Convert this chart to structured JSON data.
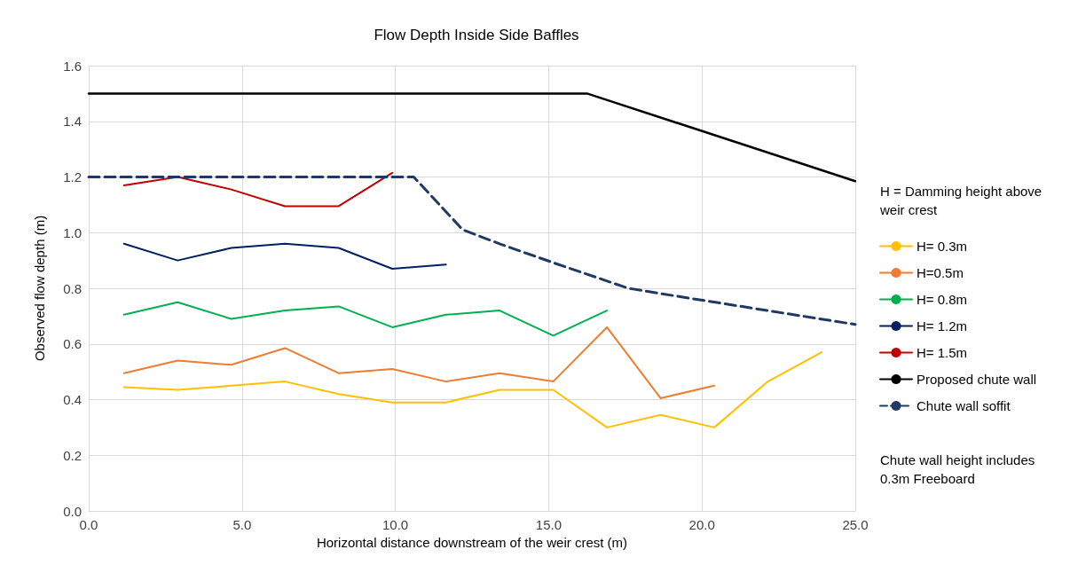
{
  "chart_data": {
    "type": "line",
    "title": "Flow Depth Inside Side Baffles",
    "xlabel": "Horizontal distance downstream of the weir crest (m)",
    "ylabel": "Observed flow depth (m)",
    "legend_title": "H = Damming height above weir crest",
    "annotations": [
      "Chute wall height includes 0.3m Freeboard"
    ],
    "x": [
      1.15,
      2.9,
      4.65,
      6.4,
      8.15,
      9.9,
      11.65,
      13.4,
      15.15,
      16.9,
      18.65,
      20.4,
      22.15,
      23.9
    ],
    "series": [
      {
        "name": "H= 0.3m",
        "color": "#ffc000",
        "values": [
          0.445,
          0.435,
          0.45,
          0.465,
          0.42,
          0.39,
          0.39,
          0.435,
          0.435,
          0.3,
          0.345,
          0.3,
          0.465,
          0.57
        ]
      },
      {
        "name": "H=0.5m",
        "color": "#ed7d31",
        "values": [
          0.495,
          0.54,
          0.525,
          0.585,
          0.495,
          0.51,
          0.465,
          0.495,
          0.465,
          0.66,
          0.405,
          0.45,
          null,
          null
        ]
      },
      {
        "name": "H= 0.8m",
        "color": "#00b050",
        "values": [
          0.705,
          0.75,
          0.69,
          0.72,
          0.735,
          0.66,
          0.705,
          0.72,
          0.63,
          0.72,
          null,
          null,
          null,
          null
        ]
      },
      {
        "name": "H= 1.2m",
        "color": "#002060",
        "values": [
          0.96,
          0.9,
          0.945,
          0.96,
          0.945,
          0.87,
          0.885,
          null,
          null,
          null,
          null,
          null,
          null,
          null
        ]
      },
      {
        "name": "H= 1.5m",
        "color": "#c00000",
        "values": [
          1.17,
          1.2,
          1.155,
          1.095,
          1.095,
          1.215,
          null,
          null,
          null,
          null,
          null,
          null,
          null,
          null
        ]
      },
      {
        "name": "Proposed chute wall",
        "color": "#000000",
        "x": [
          0,
          16.25,
          25
        ],
        "values": [
          1.5,
          1.5,
          1.185
        ]
      },
      {
        "name": "Chute wall soffit",
        "color": "#203864",
        "line_style": "dashed",
        "x": [
          0,
          10.6,
          12.2,
          13.4,
          15.2,
          17.6,
          18.7,
          25
        ],
        "values": [
          1.2,
          1.2,
          1.01,
          0.96,
          0.89,
          0.8,
          0.78,
          0.67
        ]
      }
    ],
    "xlim": [
      0,
      25
    ],
    "xticks": [
      {
        "value": 0,
        "label": "0.0"
      },
      {
        "value": 5,
        "label": "5.0"
      },
      {
        "value": 10,
        "label": "10.0"
      },
      {
        "value": 15,
        "label": "15.0"
      },
      {
        "value": 20,
        "label": "20.0"
      },
      {
        "value": 25,
        "label": "25.0"
      }
    ],
    "ylim": [
      0,
      1.6
    ],
    "yticks": [
      {
        "value": 0,
        "label": "0.0"
      },
      {
        "value": 0.2,
        "label": "0.2"
      },
      {
        "value": 0.4,
        "label": "0.4"
      },
      {
        "value": 0.6,
        "label": "0.6"
      },
      {
        "value": 0.8,
        "label": "0.8"
      },
      {
        "value": 1,
        "label": "1.0"
      },
      {
        "value": 1.2,
        "label": "1.2"
      },
      {
        "value": 1.4,
        "label": "1.4"
      },
      {
        "value": 1.6,
        "label": "1.6"
      }
    ],
    "grid": true,
    "legend": "right",
    "marker": "none",
    "line_style": "solid"
  }
}
